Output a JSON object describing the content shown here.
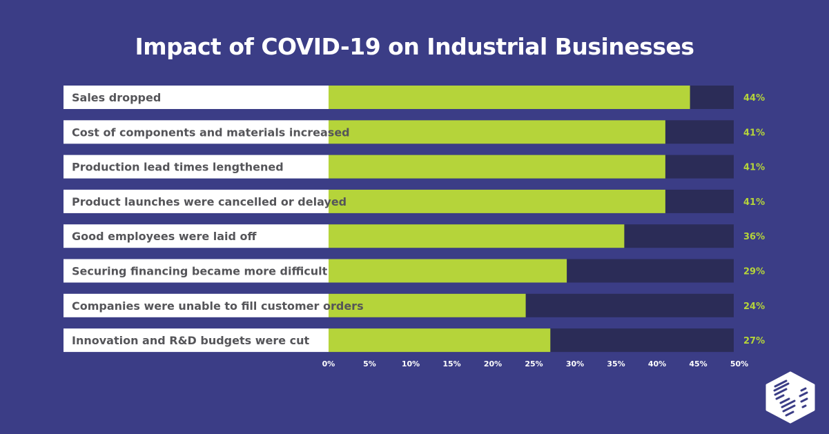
{
  "chart_data": {
    "type": "bar",
    "orientation": "horizontal",
    "title": "Impact of COVID-19 on Industrial Businesses",
    "categories": [
      "Sales dropped",
      "Cost of components and materials increased",
      "Production lead times lengthened",
      "Product launches were cancelled or delayed",
      "Good employees were laid off",
      "Securing financing became more difficult",
      "Companies were unable to fill customer orders",
      "Innovation and R&D budgets were cut"
    ],
    "values": [
      44,
      41,
      41,
      41,
      36,
      29,
      24,
      27
    ],
    "data_labels": [
      "44%",
      "41%",
      "41%",
      "41%",
      "36%",
      "29%",
      "24%",
      "27%"
    ],
    "xlim": [
      0,
      50
    ],
    "x_ticks": [
      "0%",
      "5%",
      "10%",
      "15%",
      "20%",
      "25%",
      "30%",
      "35%",
      "40%",
      "45%",
      "50%"
    ],
    "grid": false,
    "legend": "none",
    "colors": {
      "background": "#3b3d86",
      "bar": "#b5d43a",
      "track": "#2b2c57",
      "label_box": "#ffffff",
      "label_text": "#555559",
      "value_text": "#b5d43a"
    }
  },
  "logo": {
    "icon": "hexagon-globe-logo"
  }
}
